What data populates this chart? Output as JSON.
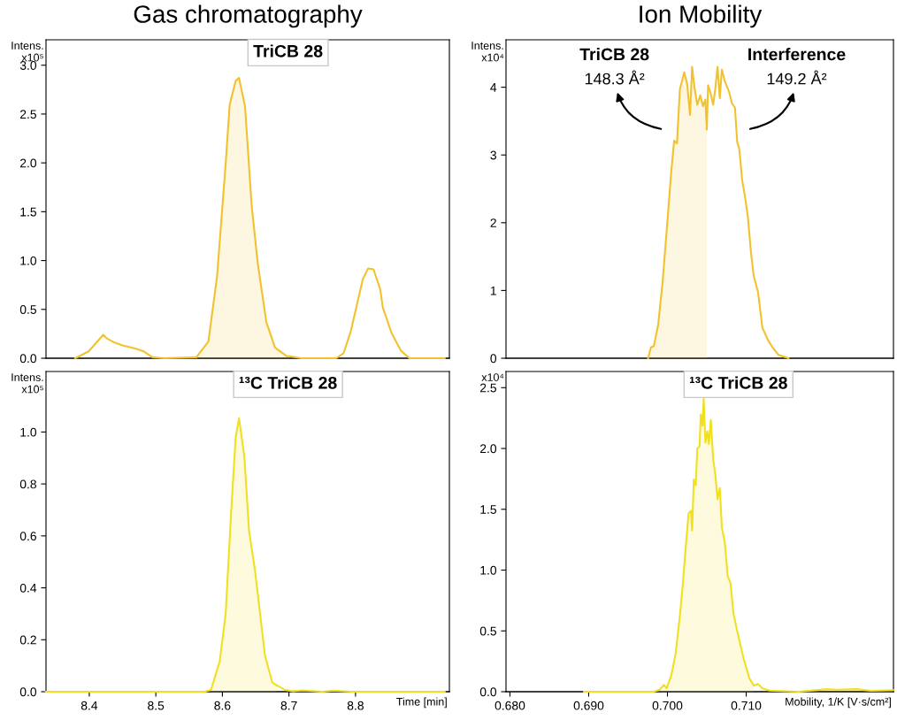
{
  "chart_data": [
    {
      "type": "area",
      "title": "Gas chromatography",
      "ylabel": "Intens.\nx10⁵",
      "tick_labels": "y",
      "xlim": [
        8.335,
        8.941
      ],
      "ylim": [
        0,
        3.26
      ],
      "yticks": [
        {
          "value": 0,
          "label": "0.0"
        },
        {
          "value": 0.5,
          "label": "0.5"
        },
        {
          "value": 1,
          "label": "1.0"
        },
        {
          "value": 1.5,
          "label": "1.5"
        },
        {
          "value": 2,
          "label": "2.0"
        },
        {
          "value": 2.5,
          "label": "2.5"
        },
        {
          "value": 3,
          "label": "3.0"
        }
      ],
      "annotations": [
        "TriCB 28"
      ],
      "series": [
        {
          "type": "line",
          "color": "#f2c12e",
          "x": [
            8.379,
            8.399,
            8.412,
            8.421,
            8.427,
            8.438,
            8.451,
            8.469,
            8.482,
            8.495,
            8.513,
            8.561
          ],
          "values": [
            0,
            0.07,
            0.17,
            0.24,
            0.2,
            0.16,
            0.13,
            0.1,
            0.07,
            0.01,
            0,
            0.01
          ]
        },
        {
          "color": "#f2c12e",
          "x": [
            8.561,
            8.579,
            8.592,
            8.605,
            8.611,
            8.62,
            8.625,
            8.634,
            8.644,
            8.653,
            8.666,
            8.679,
            8.697,
            8.701,
            8.719
          ],
          "values": [
            0.01,
            0.17,
            0.84,
            2.0,
            2.6,
            2.84,
            2.87,
            2.58,
            1.56,
            0.98,
            0.37,
            0.11,
            0.02,
            0.02,
            0
          ]
        },
        {
          "type": "line",
          "color": "#f2c12e",
          "x": [
            8.719,
            8.771,
            8.782,
            8.793,
            8.811,
            8.819,
            8.827,
            8.837,
            8.841,
            8.854,
            8.868,
            8.881,
            8.934
          ],
          "values": [
            0,
            0,
            0.05,
            0.28,
            0.81,
            0.92,
            0.91,
            0.71,
            0.52,
            0.26,
            0.08,
            0,
            0
          ]
        }
      ]
    },
    {
      "type": "area",
      "title": "Ion Mobility",
      "ylabel": "Intens.\nx10⁴",
      "tick_labels": "y",
      "xlim": [
        0.6795,
        0.7287
      ],
      "ylim": [
        0,
        4.7
      ],
      "yticks": [
        0,
        1,
        2,
        3,
        4
      ],
      "annotations": [
        "TriCB 28",
        "Interference",
        "148.3 Å²",
        "149.2 Å²"
      ],
      "series": [
        {
          "color": "#f2c12e",
          "x": [
            0.69754,
            0.6979,
            0.69827,
            0.69882,
            0.69938,
            0.69993,
            0.70048,
            0.70085,
            0.70121,
            0.70158,
            0.70213,
            0.7025,
            0.70287,
            0.70313,
            0.70342,
            0.70379,
            0.70416,
            0.70452,
            0.70482,
            0.705
          ],
          "values": [
            0,
            0.16,
            0.18,
            0.49,
            1.12,
            1.92,
            2.75,
            3.21,
            3.17,
            3.97,
            4.22,
            4.05,
            3.59,
            4.3,
            4.01,
            3.74,
            3.88,
            3.72,
            3.82,
            3.38
          ]
        },
        {
          "type": "line",
          "color": "#f2c12e",
          "x": [
            0.705,
            0.70516,
            0.70544,
            0.70581,
            0.70607,
            0.70636,
            0.70665,
            0.70691,
            0.70728,
            0.70783,
            0.7082,
            0.70857,
            0.70886,
            0.70912,
            0.70949,
            0.70985,
            0.71022,
            0.71059,
            0.71096,
            0.7115,
            0.71206,
            0.7128,
            0.71335,
            0.71408,
            0.71537
          ],
          "values": [
            3.38,
            4.03,
            3.93,
            3.74,
            3.97,
            4.3,
            3.84,
            4.26,
            4.09,
            3.93,
            3.76,
            3.7,
            3.19,
            3.09,
            2.63,
            2.38,
            2.08,
            1.58,
            1.21,
            0.98,
            0.45,
            0.26,
            0.16,
            0.05,
            0
          ]
        }
      ]
    },
    {
      "type": "area",
      "xlabel": "Time [min]",
      "ylabel": "Intens.\nx10⁵",
      "xlim": [
        8.335,
        8.941
      ],
      "ylim": [
        0,
        1.233
      ],
      "xticks": [
        8.4,
        8.5,
        8.6,
        8.7,
        8.8
      ],
      "yticks": [
        {
          "value": 0,
          "label": "0.0"
        },
        {
          "value": 0.2,
          "label": "0.2"
        },
        {
          "value": 0.4,
          "label": "0.4"
        },
        {
          "value": 0.6,
          "label": "0.6"
        },
        {
          "value": 0.8,
          "label": "0.8"
        },
        {
          "value": 1,
          "label": "1.0"
        }
      ],
      "annotations": [
        "¹³C TriCB 28"
      ],
      "series": [
        {
          "type": "line",
          "color": "#f0e020",
          "x": [
            8.335,
            8.574
          ],
          "values": [
            0,
            0
          ]
        },
        {
          "color": "#f0e020",
          "x": [
            8.574,
            8.583,
            8.596,
            8.605,
            8.613,
            8.62,
            8.625,
            8.633,
            8.64,
            8.649,
            8.664,
            8.675,
            8.682
          ],
          "values": [
            0,
            0.008,
            0.117,
            0.303,
            0.686,
            0.981,
            1.053,
            0.905,
            0.62,
            0.467,
            0.139,
            0.035,
            0.024
          ]
        },
        {
          "type": "line",
          "color": "#f0e020",
          "x": [
            8.682,
            8.693,
            8.706,
            8.721,
            8.75,
            8.767,
            8.793,
            8.934
          ],
          "values": [
            0.024,
            0.008,
            0.002,
            0.005,
            0,
            0.004,
            0,
            0
          ]
        }
      ]
    },
    {
      "type": "area",
      "xlabel": "Mobility, 1/K [V·s/cm²]",
      "ylabel": "x10⁴",
      "xlim": [
        0.6795,
        0.7287
      ],
      "ylim": [
        0,
        2.633
      ],
      "xticks": [
        {
          "value": 0.68,
          "label": "0.680"
        },
        {
          "value": 0.69,
          "label": "0.690"
        },
        {
          "value": 0.7,
          "label": "0.700"
        },
        {
          "value": 0.71,
          "label": "0.710"
        }
      ],
      "yticks": [
        {
          "value": 0,
          "label": "0.0"
        },
        {
          "value": 0.5,
          "label": "0.5"
        },
        {
          "value": 1,
          "label": "1.0"
        },
        {
          "value": 1.5,
          "label": "1.5"
        },
        {
          "value": 2,
          "label": "2.0"
        },
        {
          "value": 2.5,
          "label": "2.5"
        }
      ],
      "annotations": [
        "¹³C TriCB 28"
      ],
      "series": [
        {
          "type": "line",
          "color": "#f0e020",
          "x": [
            0.6894,
            0.69827
          ],
          "values": [
            0,
            0
          ]
        },
        {
          "color": "#f0e020",
          "x": [
            0.69827,
            0.699,
            0.69956,
            0.6999,
            0.70048,
            0.70103,
            0.70158,
            0.70195,
            0.70232,
            0.70268,
            0.70298,
            0.70313,
            0.70335,
            0.7036,
            0.70379,
            0.70408,
            0.70423,
            0.70445,
            0.7046,
            0.70482,
            0.70507,
            0.70526,
            0.70551,
            0.70581,
            0.70607,
            0.70636,
            0.70665,
            0.70691,
            0.70728,
            0.70765,
            0.70801,
            0.70838,
            0.70875,
            0.70912,
            0.70967,
            0.7104,
            0.71096
          ],
          "values": [
            0,
            0.016,
            0.056,
            0.028,
            0.133,
            0.308,
            0.624,
            0.881,
            1.185,
            1.465,
            1.488,
            1.325,
            1.745,
            1.699,
            2.0,
            2.019,
            2.28,
            2.187,
            2.411,
            2.048,
            2.14,
            2.037,
            2.235,
            1.909,
            1.792,
            1.582,
            1.675,
            1.348,
            1.231,
            0.951,
            0.893,
            0.647,
            0.53,
            0.425,
            0.273,
            0.11,
            0.051
          ]
        },
        {
          "type": "line",
          "color": "#f0e020",
          "x": [
            0.71096,
            0.7115,
            0.71206,
            0.71298,
            0.71665,
            0.72033,
            0.72143,
            0.724,
            0.72585,
            0.72868
          ],
          "values": [
            0.051,
            0.063,
            0.028,
            0.009,
            0,
            0.021,
            0.016,
            0.021,
            0.007,
            0.012
          ]
        }
      ]
    }
  ]
}
